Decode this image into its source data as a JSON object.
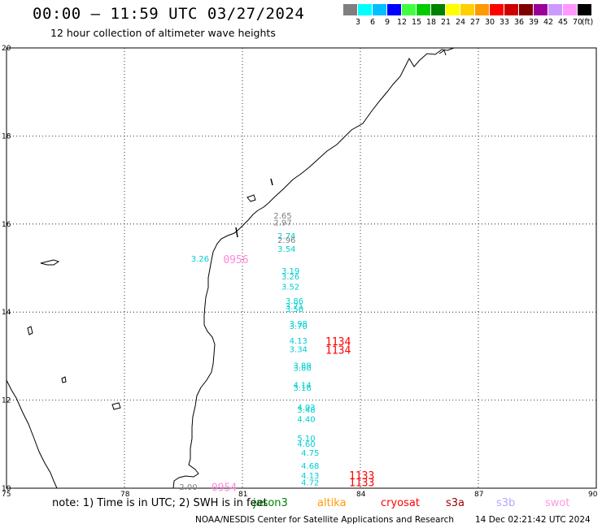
{
  "header": {
    "title": "00:00 – 11:59 UTC 03/27/2024",
    "subtitle": "12 hour collection of altimeter wave heights"
  },
  "legend": {
    "unit_label": "(ft)",
    "colors": [
      "#7f7f7f",
      "#00ffff",
      "#00bfff",
      "#0000ff",
      "#40ff40",
      "#00cc00",
      "#008000",
      "#ffff00",
      "#ffd000",
      "#ff9900",
      "#ff0000",
      "#cc0000",
      "#800000",
      "#990099",
      "#cc99ff",
      "#ff99ff",
      "#000000"
    ],
    "ticks": [
      "3",
      "6",
      "9",
      "12",
      "15",
      "18",
      "21",
      "24",
      "27",
      "30",
      "33",
      "36",
      "39",
      "42",
      "45",
      "70"
    ]
  },
  "axes": {
    "lat_labels": [
      "20",
      "18",
      "16",
      "14",
      "12",
      "10"
    ],
    "lon_labels": [
      "75",
      "78",
      "81",
      "84",
      "87",
      "90"
    ]
  },
  "map": {
    "region": "Bay of Bengal west coast (India)",
    "lon_range": [
      75,
      90
    ],
    "lat_range": [
      10,
      20
    ],
    "grid": "dotted"
  },
  "observations": [
    {
      "lon": 82.0,
      "lat": 16.18,
      "value": "2.65",
      "color": "#7f7f7f"
    },
    {
      "lon": 82.0,
      "lat": 16.02,
      "value": "2.97",
      "color": "#7f7f7f"
    },
    {
      "lon": 82.1,
      "lat": 15.72,
      "value": "2.74",
      "color": "#00ced1"
    },
    {
      "lon": 82.1,
      "lat": 15.63,
      "value": "2.96",
      "color": "#7f7f7f"
    },
    {
      "lon": 82.1,
      "lat": 15.42,
      "value": "3.54",
      "color": "#00ced1"
    },
    {
      "lon": 79.9,
      "lat": 15.2,
      "value": "3.26",
      "color": "#00ced1"
    },
    {
      "lon": 82.2,
      "lat": 14.93,
      "value": "3.19",
      "color": "#00ced1"
    },
    {
      "lon": 82.2,
      "lat": 14.8,
      "value": "3.26",
      "color": "#00ced1"
    },
    {
      "lon": 82.2,
      "lat": 14.57,
      "value": "3.52",
      "color": "#00ced1"
    },
    {
      "lon": 82.3,
      "lat": 14.24,
      "value": "3.86",
      "color": "#00ced1"
    },
    {
      "lon": 82.3,
      "lat": 14.12,
      "value": "3.71",
      "color": "#00ced1"
    },
    {
      "lon": 82.3,
      "lat": 14.06,
      "value": "3.50",
      "color": "#00ced1"
    },
    {
      "lon": 82.4,
      "lat": 13.73,
      "value": "3.98",
      "color": "#00ced1"
    },
    {
      "lon": 82.4,
      "lat": 13.67,
      "value": "3.70",
      "color": "#00ced1"
    },
    {
      "lon": 82.4,
      "lat": 13.34,
      "value": "4.13",
      "color": "#00ced1"
    },
    {
      "lon": 82.4,
      "lat": 13.15,
      "value": "3.34",
      "color": "#00ced1"
    },
    {
      "lon": 82.5,
      "lat": 12.78,
      "value": "3.89",
      "color": "#00ced1"
    },
    {
      "lon": 82.5,
      "lat": 12.72,
      "value": "3.80",
      "color": "#00ced1"
    },
    {
      "lon": 82.5,
      "lat": 12.33,
      "value": "4.14",
      "color": "#00ced1"
    },
    {
      "lon": 82.5,
      "lat": 12.27,
      "value": "3.16",
      "color": "#00ced1"
    },
    {
      "lon": 82.6,
      "lat": 11.83,
      "value": "4.03",
      "color": "#00ced1"
    },
    {
      "lon": 82.6,
      "lat": 11.77,
      "value": "3.48",
      "color": "#00ced1"
    },
    {
      "lon": 82.6,
      "lat": 11.56,
      "value": "4.40",
      "color": "#00ced1"
    },
    {
      "lon": 82.6,
      "lat": 11.13,
      "value": "5.10",
      "color": "#00ced1"
    },
    {
      "lon": 82.6,
      "lat": 11.0,
      "value": "4.60",
      "color": "#00ced1"
    },
    {
      "lon": 82.7,
      "lat": 10.79,
      "value": "4.75",
      "color": "#00ced1"
    },
    {
      "lon": 82.7,
      "lat": 10.5,
      "value": "4.68",
      "color": "#00ced1"
    },
    {
      "lon": 82.7,
      "lat": 10.28,
      "value": "4.13",
      "color": "#00ced1"
    },
    {
      "lon": 82.7,
      "lat": 10.12,
      "value": "4.72",
      "color": "#00ced1"
    },
    {
      "lon": 79.6,
      "lat": 10.02,
      "value": "2.00",
      "color": "#7f7f7f"
    }
  ],
  "passes": [
    {
      "lon": 80.8,
      "lat": 15.18,
      "label": "0956",
      "color": "#ff88dd"
    },
    {
      "lon": 83.4,
      "lat": 13.32,
      "label": "1134",
      "color": "#ff0000"
    },
    {
      "lon": 83.4,
      "lat": 13.13,
      "label": "1134",
      "color": "#ff0000"
    },
    {
      "lon": 84.0,
      "lat": 10.28,
      "label": "1133",
      "color": "#ff0000"
    },
    {
      "lon": 84.0,
      "lat": 10.12,
      "label": "1133",
      "color": "#ff0000"
    },
    {
      "lon": 80.5,
      "lat": 10.01,
      "label": "0954",
      "color": "#ff88dd"
    }
  ],
  "footer": {
    "note": "note: 1) Time is in UTC; 2) SWH is in feet",
    "satellites": [
      {
        "name": "jason3",
        "color": "#008000"
      },
      {
        "name": "altika",
        "color": "#ff9900"
      },
      {
        "name": "cryosat",
        "color": "#ff0000"
      },
      {
        "name": "s3a",
        "color": "#990000"
      },
      {
        "name": "s3b",
        "color": "#b3a6ff"
      },
      {
        "name": "swot",
        "color": "#ff99dd"
      }
    ],
    "credit": "NOAA/NESDIS Center for Satellite Applications and Research",
    "timestamp": "14 Dec 02:21:42 UTC 2024"
  }
}
